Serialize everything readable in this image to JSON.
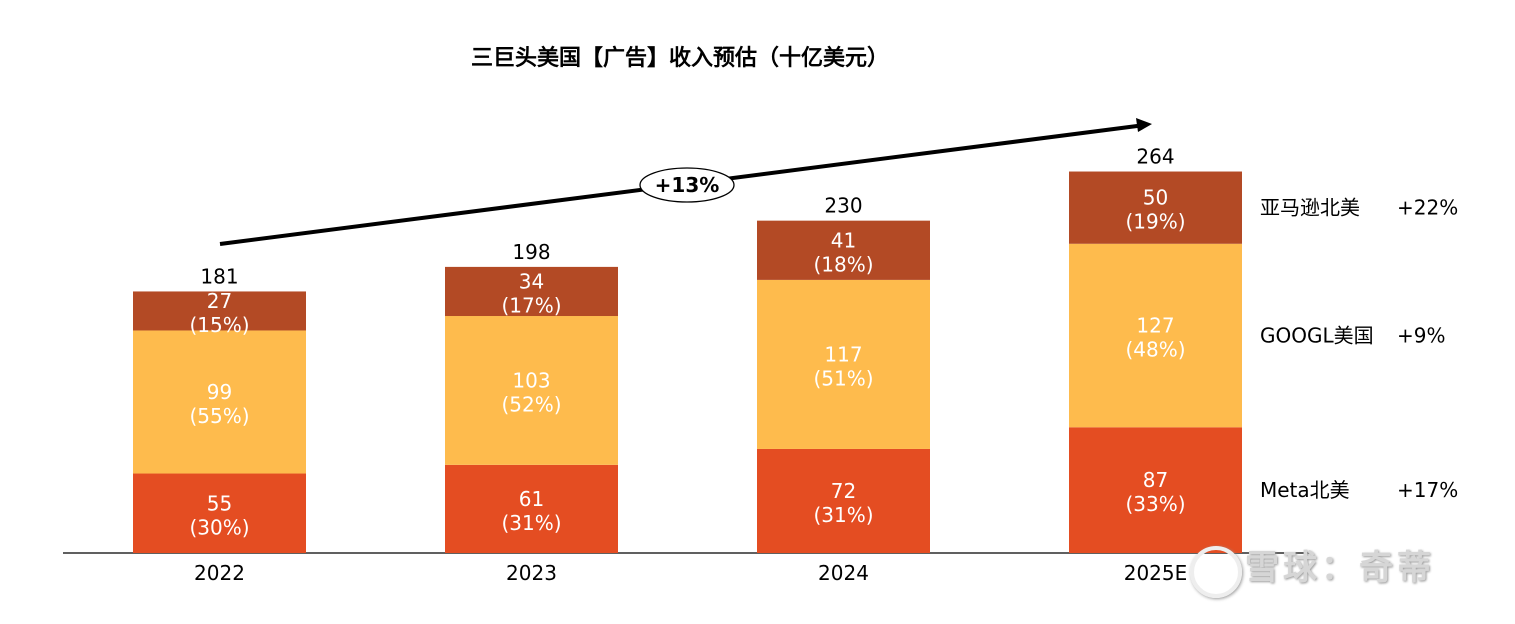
{
  "chart_data": {
    "type": "bar",
    "stacked": true,
    "title": "三巨头美国【广告】收入预估（十亿美元）",
    "xlabel": "",
    "ylabel": "",
    "categories": [
      "2022",
      "2023",
      "2024",
      "2025E"
    ],
    "ylim": [
      0,
      280
    ],
    "grid": false,
    "series": [
      {
        "name": "Meta北美",
        "growth": "+17%",
        "color": "#E44D22",
        "values": [
          55,
          61,
          72,
          87
        ],
        "labels": [
          "(30%)",
          "(31%)",
          "(31%)",
          "(33%)"
        ]
      },
      {
        "name": "GOOGL美国",
        "growth": "+9%",
        "color": "#FEBB4D",
        "values": [
          99,
          103,
          117,
          127
        ],
        "labels": [
          "(55%)",
          "(52%)",
          "(51%)",
          "(48%)"
        ]
      },
      {
        "name": "亚马逊北美",
        "growth": "+22%",
        "color": "#B34A25",
        "values": [
          27,
          34,
          41,
          50
        ],
        "labels": [
          "(15%)",
          "(17%)",
          "(18%)",
          "(19%)"
        ]
      }
    ],
    "totals": [
      181,
      198,
      230,
      264
    ],
    "legend": "right",
    "annotation": {
      "text": "+13%",
      "type": "growth-arrow",
      "from": "2022",
      "to": "2025E"
    }
  },
  "watermark": {
    "text": "雪球：奇蒂"
  }
}
